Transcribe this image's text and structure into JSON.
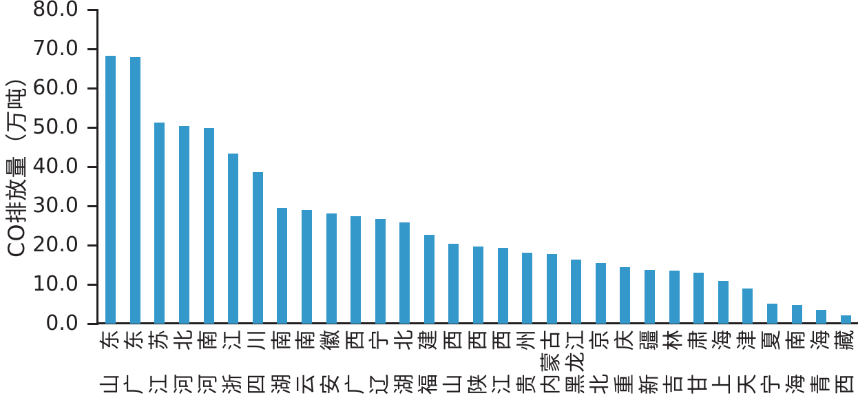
{
  "chart_data": {
    "type": "bar",
    "title": "",
    "xlabel": "",
    "ylabel": "CO排放量（万吨）",
    "ylim": [
      0,
      80
    ],
    "ytick_step": 10,
    "ytick_labels": [
      "80.0",
      "70.0",
      "60.0",
      "50.0",
      "40.0",
      "30.0",
      "20.0",
      "10.0",
      "0.0"
    ],
    "grid": false,
    "legend": "none",
    "bar_color": "#3498cb",
    "axis_color": "#231f20",
    "categories": [
      "山东",
      "广东",
      "江苏",
      "河北",
      "河南",
      "浙江",
      "四川",
      "湖南",
      "云南",
      "安徽",
      "广西",
      "辽宁",
      "湖北",
      "福建",
      "山西",
      "陕西",
      "江西",
      "贵州",
      "内蒙古",
      "黑龙江",
      "北京",
      "重庆",
      "新疆",
      "吉林",
      "甘肃",
      "上海",
      "天津",
      "宁夏",
      "海南",
      "青海",
      "西藏"
    ],
    "values": [
      68.3,
      67.9,
      51.3,
      50.3,
      49.8,
      43.4,
      38.6,
      29.4,
      28.9,
      28.1,
      27.4,
      26.7,
      25.8,
      22.6,
      20.4,
      19.6,
      19.3,
      18.0,
      17.7,
      16.3,
      15.4,
      14.3,
      13.7,
      13.5,
      13.0,
      10.9,
      8.9,
      5.1,
      4.7,
      3.5,
      2.1
    ]
  }
}
